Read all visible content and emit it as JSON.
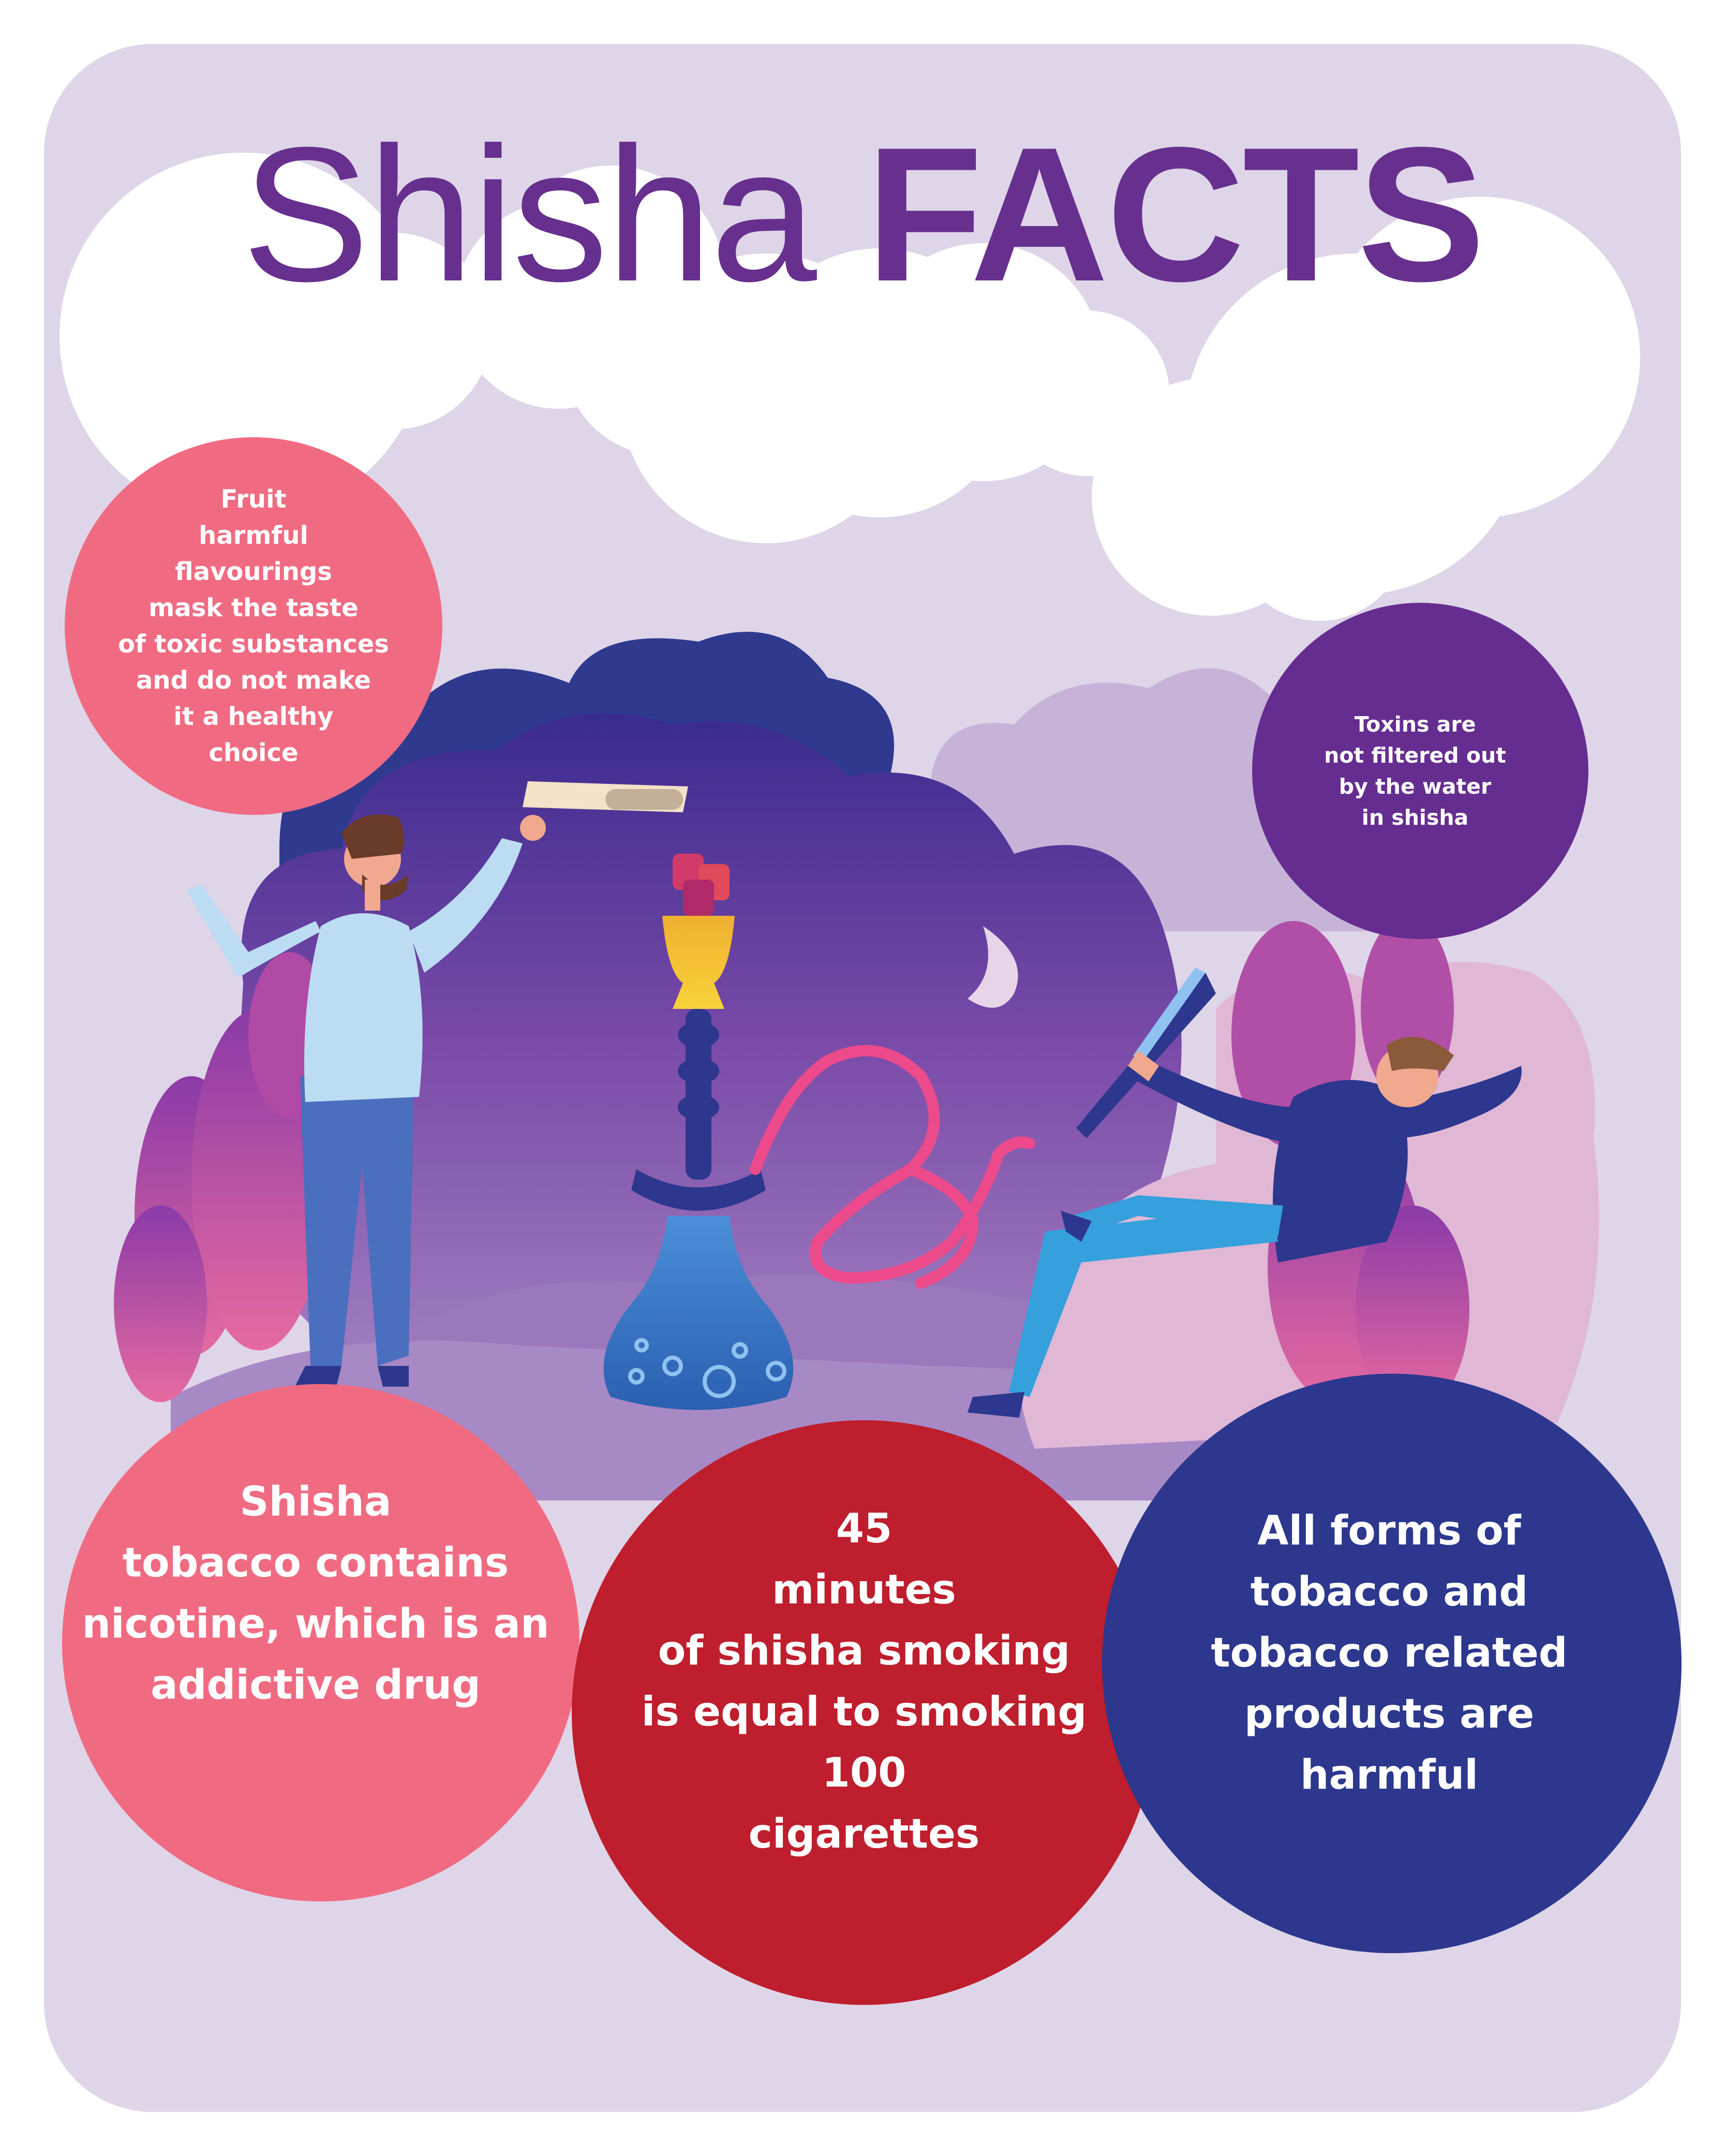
{
  "title": {
    "word1": "Shisha",
    "word2": "FACTS"
  },
  "colors": {
    "background": "#dfd5e8",
    "title": "#67308e",
    "cloud": "#ffffff",
    "pink": "#f06b82",
    "red": "#be1e2d",
    "navy": "#2c378d",
    "purple": "#652d90"
  },
  "facts": {
    "fruit": "Fruit\nharmful\nflavourings\nmask the taste\nof toxic substances\nand do not make\nit a healthy\nchoice",
    "toxins": "Toxins are\nnot filtered out\nby the water\nin shisha",
    "nicotine": "Shisha\ntobacco contains\nnicotine, which is an\naddictive drug",
    "minutes": "45\nminutes\nof shisha smoking\nis equal to smoking\n100\ncigarettes",
    "forms": "All forms of\ntobacco and\ntobacco related\nproducts are\nharmful"
  }
}
